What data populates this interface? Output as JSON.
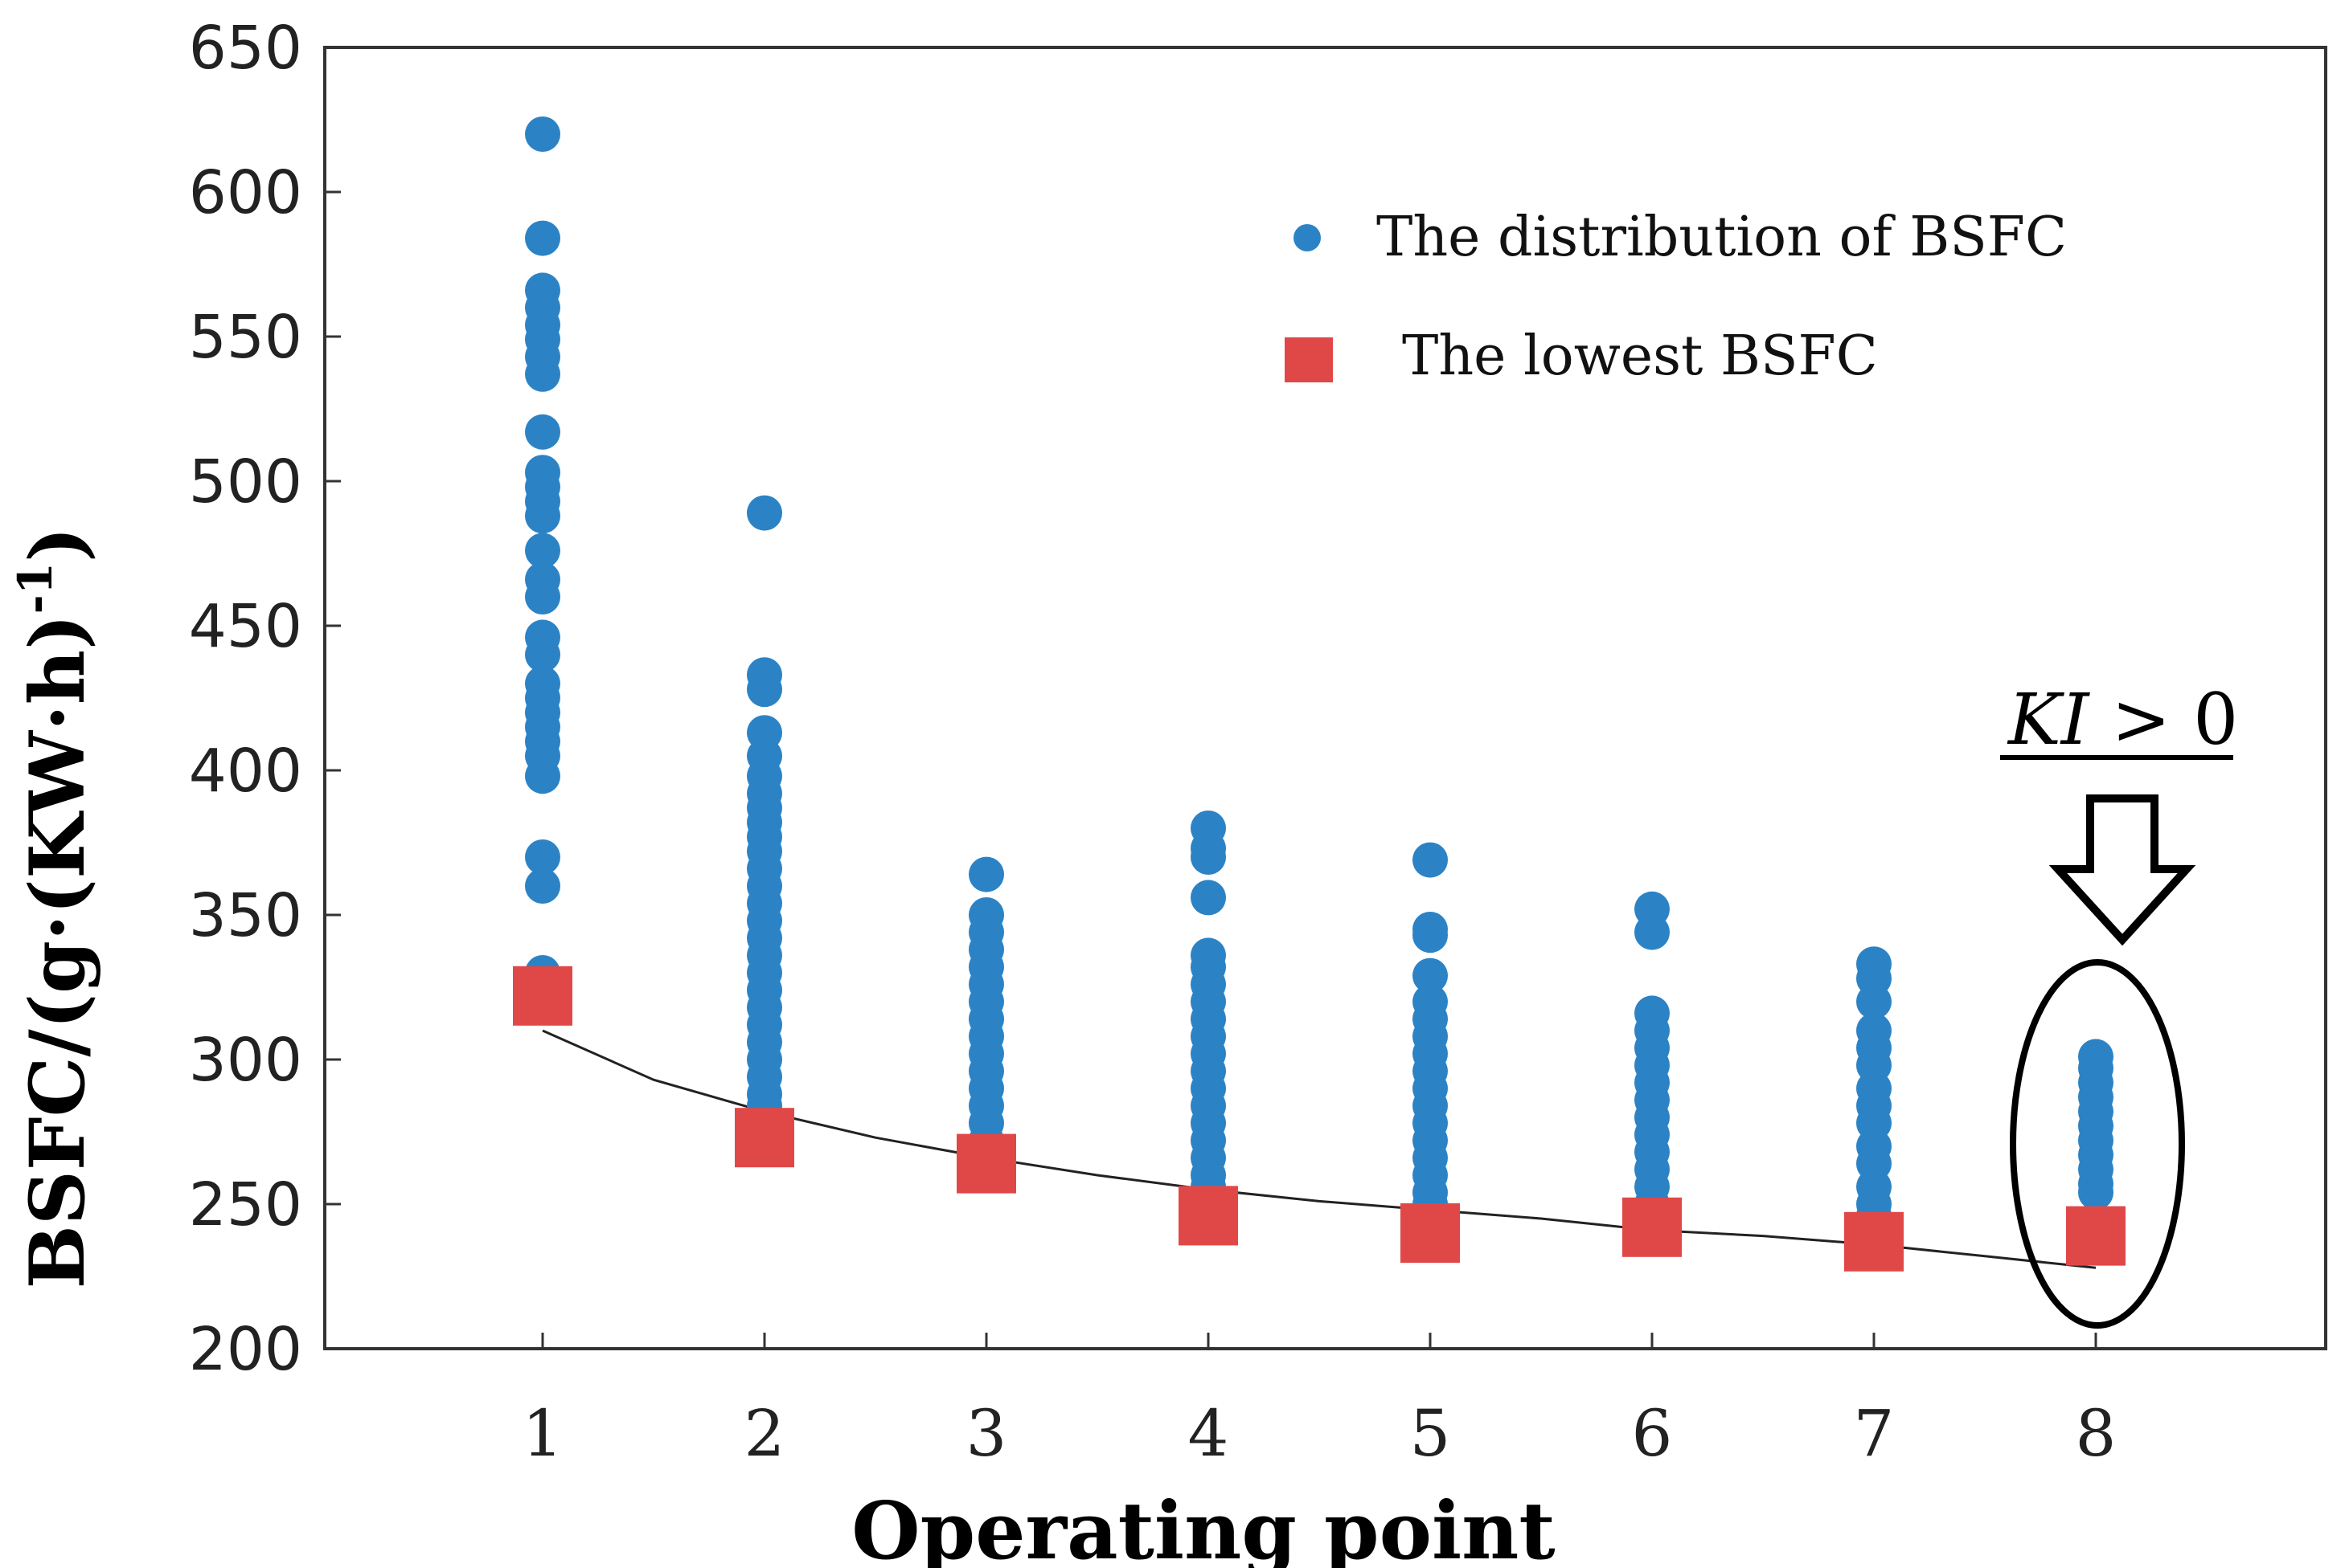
{
  "chart_data": {
    "type": "scatter",
    "xlabel": "Operating point",
    "ylabel": "BSFC/(g·(KW·h)",
    "ylabel_sup": "-1",
    "ylabel_close": ")",
    "ylim": [
      200,
      650
    ],
    "xlim": [
      0,
      8.4
    ],
    "grid": false,
    "legend_position": "top-right",
    "x_ticks": [
      "1",
      "2",
      "3",
      "4",
      "5",
      "6",
      "7",
      "8"
    ],
    "y_ticks": [
      "200",
      "250",
      "300",
      "350",
      "400",
      "450",
      "500",
      "550",
      "600",
      "650"
    ],
    "colors": {
      "distribution": "#2b83c6",
      "lowest": "#e04848",
      "curve": "#222222"
    },
    "series": [
      {
        "name": "The distribution of BSFC",
        "marker": "circle",
        "points": [
          {
            "x": 1,
            "values": [
              620,
              584,
              566,
              560,
              554,
              549,
              543,
              537,
              517,
              503,
              498,
              493,
              488,
              476,
              466,
              460,
              446,
              440,
              430,
              425,
              420,
              415,
              410,
              405,
              398,
              370,
              360,
              330
            ]
          },
          {
            "x": 2,
            "values": [
              489,
              433,
              428,
              413,
              405,
              398,
              392,
              387,
              382,
              377,
              372,
              366,
              360,
              354,
              348,
              342,
              336,
              330,
              324,
              318,
              312,
              306,
              300,
              294,
              288,
              284
            ]
          },
          {
            "x": 3,
            "values": [
              364,
              350,
              344,
              338,
              332,
              326,
              320,
              314,
              308,
              302,
              296,
              290,
              284,
              278,
              272,
              266
            ]
          },
          {
            "x": 4,
            "values": [
              380,
              373,
              370,
              356,
              336,
              332,
              326,
              320,
              314,
              308,
              302,
              296,
              290,
              284,
              278,
              272,
              266,
              260,
              256
            ]
          },
          {
            "x": 5,
            "values": [
              369,
              345,
              343,
              329,
              320,
              314,
              308,
              302,
              296,
              290,
              284,
              278,
              272,
              266,
              260,
              254,
              250
            ]
          },
          {
            "x": 6,
            "values": [
              352,
              344,
              316,
              310,
              304,
              298,
              292,
              286,
              280,
              274,
              268,
              262,
              256,
              250,
              245
            ]
          },
          {
            "x": 7,
            "values": [
              333,
              328,
              320,
              310,
              304,
              298,
              290,
              284,
              278,
              270,
              264,
              256,
              250,
              246
            ]
          },
          {
            "x": 8,
            "values": [
              301,
              297,
              292,
              287,
              282,
              277,
              272,
              267,
              262,
              257,
              254
            ]
          }
        ]
      },
      {
        "name": "The lowest BSFC",
        "marker": "square",
        "x": [
          1,
          2,
          3,
          4,
          5,
          6,
          7,
          8
        ],
        "values": [
          322,
          273,
          264,
          246,
          240,
          242,
          237,
          239
        ]
      }
    ],
    "trend_curve": {
      "x": [
        1,
        1.5,
        2,
        2.5,
        3,
        3.5,
        4,
        4.5,
        5,
        5.5,
        6,
        6.5,
        7,
        7.5,
        8
      ],
      "values": [
        310,
        293,
        282,
        273,
        266,
        260,
        255,
        251,
        248,
        245,
        241,
        239,
        236,
        232,
        228
      ]
    },
    "annotation": {
      "text_italic": "KI",
      "text_rest": " > 0",
      "target_x": 8
    }
  }
}
